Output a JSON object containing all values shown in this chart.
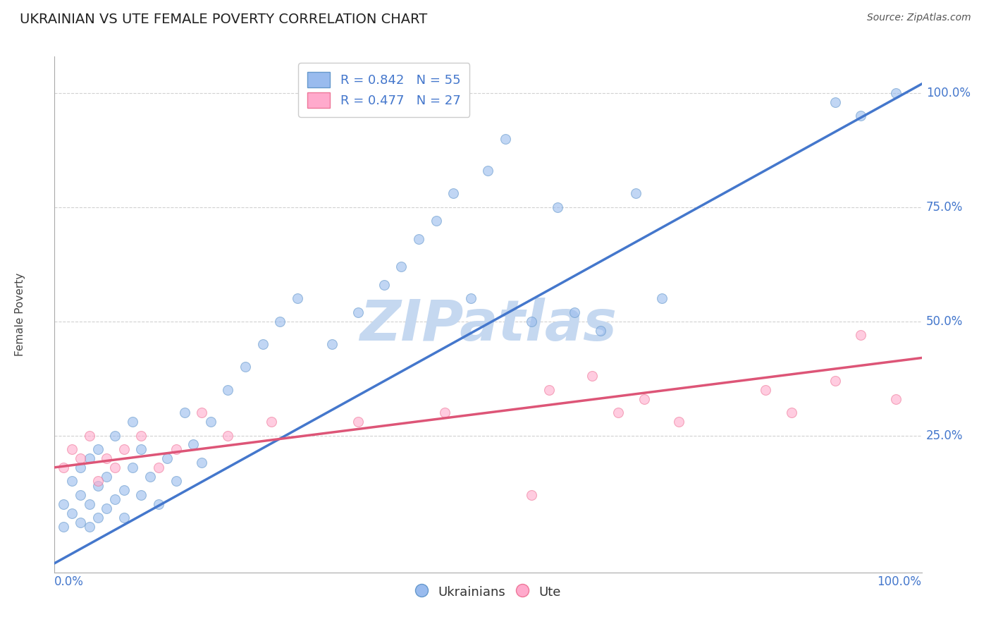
{
  "title": "UKRAINIAN VS UTE FEMALE POVERTY CORRELATION CHART",
  "source": "Source: ZipAtlas.com",
  "ylabel": "Female Poverty",
  "ytick_labels": [
    "25.0%",
    "50.0%",
    "75.0%",
    "100.0%"
  ],
  "ytick_values": [
    25,
    50,
    75,
    100
  ],
  "xlim": [
    0,
    100
  ],
  "ylim": [
    -5,
    108
  ],
  "blue_R": 0.842,
  "blue_N": 55,
  "pink_R": 0.477,
  "pink_N": 27,
  "blue_dot_color": "#99bbee",
  "blue_edge_color": "#6699cc",
  "pink_dot_color": "#ffaacc",
  "pink_edge_color": "#ee7799",
  "line_blue": "#4477cc",
  "line_pink": "#dd5577",
  "legend_label_blue": "Ukrainians",
  "legend_label_pink": "Ute",
  "blue_points_x": [
    1,
    1,
    2,
    2,
    3,
    3,
    3,
    4,
    4,
    4,
    5,
    5,
    5,
    6,
    6,
    7,
    7,
    8,
    8,
    9,
    9,
    10,
    10,
    11,
    12,
    13,
    14,
    15,
    16,
    17,
    18,
    20,
    22,
    24,
    26,
    28,
    32,
    35,
    38,
    40,
    42,
    44,
    46,
    48,
    50,
    52,
    55,
    58,
    60,
    63,
    67,
    70,
    90,
    93,
    97
  ],
  "blue_points_y": [
    5,
    10,
    8,
    15,
    6,
    12,
    18,
    5,
    10,
    20,
    7,
    14,
    22,
    9,
    16,
    11,
    25,
    13,
    7,
    18,
    28,
    12,
    22,
    16,
    10,
    20,
    15,
    30,
    23,
    19,
    28,
    35,
    40,
    45,
    50,
    55,
    45,
    52,
    58,
    62,
    68,
    72,
    78,
    55,
    83,
    90,
    50,
    75,
    52,
    48,
    78,
    55,
    98,
    95,
    100
  ],
  "pink_points_x": [
    1,
    2,
    3,
    4,
    5,
    6,
    7,
    8,
    10,
    12,
    14,
    17,
    20,
    25,
    35,
    45,
    55,
    57,
    62,
    65,
    68,
    72,
    82,
    85,
    90,
    93,
    97
  ],
  "pink_points_y": [
    18,
    22,
    20,
    25,
    15,
    20,
    18,
    22,
    25,
    18,
    22,
    30,
    25,
    28,
    28,
    30,
    12,
    35,
    38,
    30,
    33,
    28,
    35,
    30,
    37,
    47,
    33
  ],
  "blue_trend_x0": 0,
  "blue_trend_y0": -3,
  "blue_trend_x1": 100,
  "blue_trend_y1": 102,
  "pink_trend_x0": 0,
  "pink_trend_y0": 18,
  "pink_trend_x1": 100,
  "pink_trend_y1": 42,
  "watermark_text": "ZIPatlas",
  "watermark_color": "#c5d8f0",
  "background_color": "#ffffff",
  "grid_color": "#cccccc",
  "title_color": "#222222",
  "axis_tick_color": "#4477cc",
  "marker_size": 100,
  "marker_alpha": 0.6,
  "spine_color": "#aaaaaa"
}
